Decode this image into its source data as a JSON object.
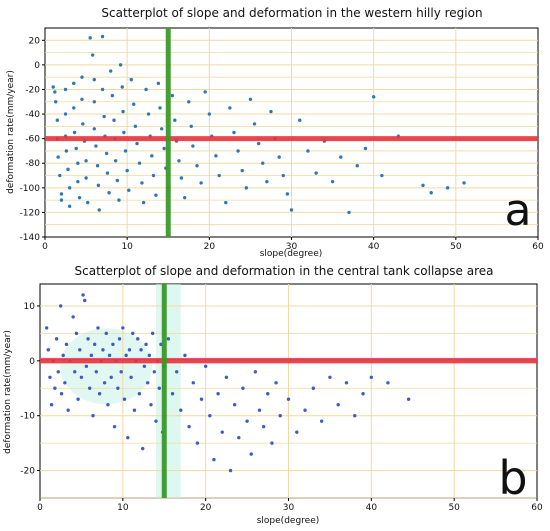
{
  "colors": {
    "grid": "#f2d9a2",
    "points_a": "#2f78b3",
    "points_b": "#3e5cc2",
    "halo_b": "#c8f2e8",
    "hline": "#e8343b",
    "hline_b_top": "#e07ad0",
    "vline": "#3a9a2a"
  },
  "chart_data": [
    {
      "id": "a",
      "type": "scatter",
      "title": "Scatterplot of slope and deformation in the western hilly region",
      "xlabel": "slope(degree)",
      "ylabel": "deformation rate(mm/year)",
      "panel_label": "a",
      "xlim": [
        0,
        60
      ],
      "ylim": [
        -140,
        30
      ],
      "xticks": [
        0,
        10,
        20,
        30,
        40,
        50,
        60
      ],
      "yticks": [
        -140,
        -120,
        -100,
        -80,
        -60,
        -40,
        -20,
        0,
        20
      ],
      "grid": true,
      "hline": -60,
      "vline": 15,
      "points": [
        [
          1,
          -18
        ],
        [
          1.2,
          -22
        ],
        [
          1.3,
          -30
        ],
        [
          1.5,
          -45
        ],
        [
          1.5,
          -60
        ],
        [
          1.6,
          -75
        ],
        [
          1.8,
          -90
        ],
        [
          2,
          -105
        ],
        [
          2,
          -110
        ],
        [
          2.5,
          -20
        ],
        [
          2.5,
          -40
        ],
        [
          2.5,
          -58
        ],
        [
          2.6,
          -70
        ],
        [
          2.8,
          -85
        ],
        [
          3,
          -100
        ],
        [
          3,
          -115
        ],
        [
          3.5,
          -15
        ],
        [
          3.5,
          -35
        ],
        [
          3.6,
          -55
        ],
        [
          3.8,
          -68
        ],
        [
          4,
          -80
        ],
        [
          4,
          -95
        ],
        [
          4.2,
          -108
        ],
        [
          4.5,
          -10
        ],
        [
          4.5,
          -28
        ],
        [
          4.6,
          -48
        ],
        [
          4.8,
          -62
        ],
        [
          5,
          -78
        ],
        [
          5,
          -92
        ],
        [
          5.2,
          -112
        ],
        [
          5.5,
          22
        ],
        [
          5.8,
          8
        ],
        [
          6,
          -12
        ],
        [
          6,
          -30
        ],
        [
          6,
          -52
        ],
        [
          6.2,
          -66
        ],
        [
          6.4,
          -82
        ],
        [
          6.5,
          -98
        ],
        [
          6.6,
          -118
        ],
        [
          7,
          23
        ],
        [
          7,
          -20
        ],
        [
          7.2,
          -42
        ],
        [
          7.3,
          -58
        ],
        [
          7.5,
          -72
        ],
        [
          7.6,
          -88
        ],
        [
          7.8,
          -104
        ],
        [
          8,
          -5
        ],
        [
          8.2,
          -25
        ],
        [
          8.4,
          -45
        ],
        [
          8.5,
          -60
        ],
        [
          8.6,
          -78
        ],
        [
          8.8,
          -94
        ],
        [
          9,
          -110
        ],
        [
          9.2,
          0
        ],
        [
          9.4,
          -18
        ],
        [
          9.5,
          -38
        ],
        [
          9.6,
          -55
        ],
        [
          9.8,
          -70
        ],
        [
          10,
          -86
        ],
        [
          10.2,
          -102
        ],
        [
          10.5,
          -12
        ],
        [
          10.8,
          -32
        ],
        [
          11,
          -50
        ],
        [
          11.2,
          -64
        ],
        [
          11.5,
          -80
        ],
        [
          11.8,
          -96
        ],
        [
          12,
          -112
        ],
        [
          12.3,
          -20
        ],
        [
          12.6,
          -40
        ],
        [
          12.8,
          -58
        ],
        [
          13,
          -74
        ],
        [
          13.2,
          -90
        ],
        [
          13.5,
          -106
        ],
        [
          13.8,
          -15
        ],
        [
          14,
          -35
        ],
        [
          14.2,
          -52
        ],
        [
          14.5,
          -68
        ],
        [
          14.7,
          -84
        ],
        [
          15,
          -100
        ],
        [
          15.5,
          -25
        ],
        [
          15.8,
          -45
        ],
        [
          16,
          -62
        ],
        [
          16.3,
          -78
        ],
        [
          16.6,
          -92
        ],
        [
          17,
          -108
        ],
        [
          17.5,
          -30
        ],
        [
          17.8,
          -50
        ],
        [
          18,
          -66
        ],
        [
          18.5,
          -82
        ],
        [
          19,
          -96
        ],
        [
          19.5,
          -22
        ],
        [
          20,
          -40
        ],
        [
          20.3,
          -58
        ],
        [
          20.8,
          -74
        ],
        [
          21.2,
          -90
        ],
        [
          22,
          -112
        ],
        [
          22.5,
          -35
        ],
        [
          23,
          -55
        ],
        [
          23.5,
          -70
        ],
        [
          24,
          -86
        ],
        [
          24.5,
          -100
        ],
        [
          25,
          -28
        ],
        [
          25.5,
          -48
        ],
        [
          26,
          -64
        ],
        [
          26.5,
          -80
        ],
        [
          27,
          -95
        ],
        [
          27.5,
          -38
        ],
        [
          28,
          -60
        ],
        [
          28.5,
          -75
        ],
        [
          29,
          -90
        ],
        [
          29.5,
          -105
        ],
        [
          30,
          -118
        ],
        [
          31,
          -45
        ],
        [
          32,
          -70
        ],
        [
          33,
          -88
        ],
        [
          34,
          -62
        ],
        [
          35,
          -95
        ],
        [
          36,
          -75
        ],
        [
          37,
          -120
        ],
        [
          38,
          -82
        ],
        [
          39,
          -68
        ],
        [
          40,
          -26
        ],
        [
          41,
          -90
        ],
        [
          43,
          -58
        ],
        [
          46,
          -98
        ],
        [
          47,
          -104
        ],
        [
          49,
          -100
        ],
        [
          51,
          -96
        ]
      ]
    },
    {
      "id": "b",
      "type": "scatter",
      "title": "Scatterplot of slope and deformation in the central tank collapse area",
      "xlabel": "slope(degree)",
      "ylabel": "deformation rate(mm/year)",
      "panel_label": "b",
      "xlim": [
        0,
        60
      ],
      "ylim": [
        -25,
        14
      ],
      "xticks": [
        0,
        10,
        20,
        30,
        40,
        50,
        60
      ],
      "yticks": [
        -20,
        -10,
        0,
        10
      ],
      "grid": true,
      "hline": 0,
      "vline": 15,
      "points": [
        [
          0.8,
          6
        ],
        [
          1,
          2
        ],
        [
          1.2,
          -3
        ],
        [
          1.4,
          -8
        ],
        [
          1.6,
          0
        ],
        [
          1.8,
          -5
        ],
        [
          2,
          4
        ],
        [
          2.2,
          -2
        ],
        [
          2.5,
          10
        ],
        [
          2.6,
          -6
        ],
        [
          2.8,
          1
        ],
        [
          3,
          -4
        ],
        [
          3.2,
          3
        ],
        [
          3.4,
          -9
        ],
        [
          3.6,
          0
        ],
        [
          4,
          8
        ],
        [
          4.2,
          -2
        ],
        [
          4.4,
          5
        ],
        [
          4.6,
          -7
        ],
        [
          4.8,
          2
        ],
        [
          5,
          -3
        ],
        [
          5.2,
          12
        ],
        [
          5.4,
          11
        ],
        [
          5.6,
          -1
        ],
        [
          5.8,
          4
        ],
        [
          6,
          -5
        ],
        [
          6.2,
          1
        ],
        [
          6.4,
          -10
        ],
        [
          6.6,
          3
        ],
        [
          6.8,
          -2
        ],
        [
          7,
          6
        ],
        [
          7.2,
          -6
        ],
        [
          7.4,
          0
        ],
        [
          7.6,
          2
        ],
        [
          7.8,
          -4
        ],
        [
          8,
          5
        ],
        [
          8.2,
          -8
        ],
        [
          8.4,
          1
        ],
        [
          8.6,
          -3
        ],
        [
          8.8,
          3
        ],
        [
          9,
          -12
        ],
        [
          9.2,
          0
        ],
        [
          9.4,
          -5
        ],
        [
          9.6,
          4
        ],
        [
          9.8,
          -2
        ],
        [
          10,
          6
        ],
        [
          10.2,
          -7
        ],
        [
          10.4,
          1
        ],
        [
          10.6,
          -14
        ],
        [
          10.8,
          2
        ],
        [
          11,
          -3
        ],
        [
          11.2,
          5
        ],
        [
          11.4,
          -9
        ],
        [
          11.6,
          0
        ],
        [
          11.8,
          4
        ],
        [
          12,
          -6
        ],
        [
          12.2,
          2
        ],
        [
          12.4,
          -16
        ],
        [
          12.6,
          -1
        ],
        [
          12.8,
          3
        ],
        [
          13,
          -4
        ],
        [
          13.2,
          1
        ],
        [
          13.4,
          -8
        ],
        [
          13.6,
          5
        ],
        [
          13.8,
          -2
        ],
        [
          14,
          -11
        ],
        [
          14.2,
          0
        ],
        [
          14.4,
          -5
        ],
        [
          14.6,
          3
        ],
        [
          14.8,
          -13
        ],
        [
          15,
          -1
        ],
        [
          15.5,
          4
        ],
        [
          16,
          -6
        ],
        [
          16.5,
          -2
        ],
        [
          17,
          -9
        ],
        [
          17.5,
          1
        ],
        [
          18,
          -12
        ],
        [
          18.5,
          -4
        ],
        [
          19,
          -15
        ],
        [
          19.5,
          -7
        ],
        [
          20,
          -1
        ],
        [
          20.5,
          -10
        ],
        [
          21,
          -18
        ],
        [
          21.5,
          -6
        ],
        [
          22,
          -13
        ],
        [
          22.5,
          -3
        ],
        [
          23,
          -20
        ],
        [
          23.5,
          -8
        ],
        [
          24,
          -14
        ],
        [
          24.5,
          -5
        ],
        [
          25,
          -11
        ],
        [
          25.5,
          -17
        ],
        [
          26,
          -2
        ],
        [
          26.5,
          -9
        ],
        [
          27,
          -12
        ],
        [
          27.5,
          -6
        ],
        [
          28,
          -15
        ],
        [
          28.5,
          -4
        ],
        [
          29,
          -10
        ],
        [
          30,
          -7
        ],
        [
          31,
          -13
        ],
        [
          32,
          -9
        ],
        [
          33,
          -5
        ],
        [
          34,
          -11
        ],
        [
          35,
          -3
        ],
        [
          36,
          -8
        ],
        [
          37,
          -4
        ],
        [
          38,
          -10
        ],
        [
          39,
          -6
        ],
        [
          40,
          -3
        ],
        [
          42,
          -4
        ],
        [
          44.5,
          -7
        ]
      ]
    }
  ]
}
